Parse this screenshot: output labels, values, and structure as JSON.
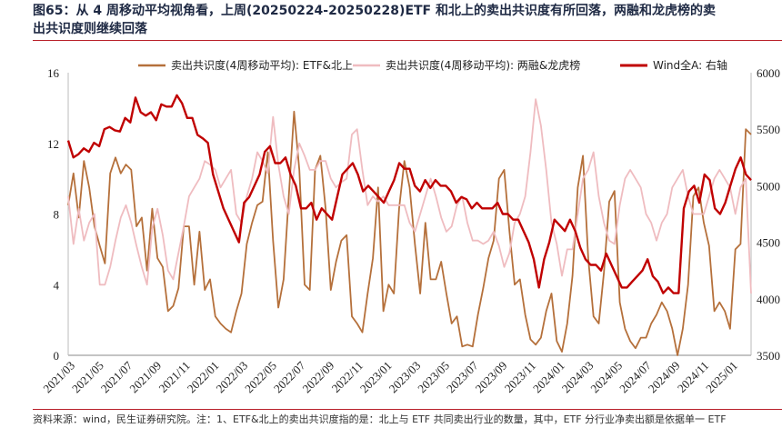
{
  "title": {
    "line1": "图65：从 4 周移动平均视角看，上周(20250224-20250228)ETF 和北上的卖出共识度有所回落，两融和龙虎榜的卖",
    "line2": "出共识度则继续回落"
  },
  "source": "资料来源：wind，民生证券研究院。注：1、ETF&北上的卖出共识度指的是：北上与 ETF 共同卖出行业的数量，其中，ETF 分行业净卖出额是依据单一 ETF",
  "colors": {
    "etf": "#b5703b",
    "margin": "#efbcc0",
    "wind": "#c00000",
    "accent": "#b9202a"
  },
  "chart_data": {
    "type": "line",
    "legend_position": "top",
    "x_tick_labels": [
      "2021/03",
      "2021/05",
      "2021/07",
      "2021/09",
      "2021/11",
      "2022/01",
      "2022/03",
      "2022/05",
      "2022/07",
      "2022/09",
      "2022/11",
      "2023/01",
      "2023/03",
      "2023/05",
      "2023/07",
      "2023/09",
      "2023/11",
      "2024/01",
      "2024/03",
      "2024/05",
      "2024/07",
      "2024/09",
      "2024/11",
      "2025/01"
    ],
    "x_start": "2021-03",
    "y_left": {
      "min": 0,
      "max": 16,
      "ticks": [
        0,
        4,
        8,
        12,
        16
      ]
    },
    "y_right": {
      "min": 3500,
      "max": 6000,
      "ticks": [
        3500,
        4000,
        4500,
        5000,
        5500,
        6000
      ]
    },
    "series": [
      {
        "name": "卖出共识度(4周移动平均): ETF&北上",
        "axis": "left",
        "values": [
          8.5,
          10.3,
          7.8,
          11.0,
          9.5,
          7.3,
          6.2,
          5.2,
          10.3,
          11.2,
          10.3,
          10.8,
          10.5,
          7.3,
          7.8,
          4.8,
          8.3,
          5.5,
          5.0,
          2.5,
          2.8,
          3.8,
          7.3,
          7.3,
          4.0,
          7.0,
          3.7,
          4.3,
          2.2,
          1.8,
          1.5,
          1.3,
          2.5,
          3.5,
          6.3,
          7.5,
          8.5,
          8.7,
          11.5,
          6.5,
          2.7,
          4.3,
          9.0,
          13.8,
          10.5,
          4.0,
          3.7,
          10.5,
          11.3,
          8.3,
          3.7,
          5.3,
          6.5,
          6.8,
          2.2,
          1.8,
          1.3,
          3.5,
          5.5,
          9.5,
          2.5,
          4.0,
          3.5,
          8.3,
          11.0,
          9.5,
          6.3,
          3.5,
          7.5,
          4.3,
          4.3,
          5.3,
          3.5,
          1.8,
          2.2,
          0.5,
          0.6,
          0.5,
          2.3,
          3.8,
          5.5,
          6.5,
          10.0,
          10.5,
          7.0,
          4.0,
          4.3,
          2.3,
          0.9,
          0.6,
          1.0,
          2.5,
          3.5,
          0.8,
          0.2,
          1.8,
          4.5,
          9.5,
          11.3,
          5.5,
          2.2,
          1.8,
          4.7,
          8.7,
          9.3,
          3.0,
          1.5,
          0.8,
          0.4,
          1.0,
          1.0,
          1.8,
          2.3,
          3.0,
          2.5,
          1.5,
          0.0,
          1.5,
          4.0,
          9.0,
          9.5,
          7.5,
          6.2,
          2.5,
          3.0,
          2.5,
          1.5,
          6.0,
          6.3,
          12.8,
          12.5
        ]
      },
      {
        "name": "卖出共识度(4周移动平均): 两融&龙虎榜",
        "axis": "left",
        "values": [
          9.0,
          6.3,
          8.3,
          6.5,
          7.5,
          8.0,
          4.0,
          4.0,
          5.0,
          6.5,
          7.8,
          8.5,
          7.5,
          6.2,
          5.0,
          4.0,
          7.2,
          8.3,
          6.8,
          4.8,
          4.3,
          5.8,
          7.3,
          9.0,
          9.5,
          10.0,
          11.0,
          10.8,
          10.5,
          9.5,
          10.0,
          10.5,
          8.0,
          7.5,
          9.0,
          10.0,
          11.5,
          11.0,
          10.3,
          13.5,
          10.8,
          9.0,
          8.0,
          10.5,
          12.0,
          11.3,
          10.5,
          10.5,
          11.0,
          11.0,
          10.0,
          9.5,
          9.8,
          10.0,
          12.5,
          12.8,
          10.5,
          8.5,
          9.0,
          8.7,
          9.0,
          8.5,
          8.5,
          8.5,
          8.5,
          7.5,
          7.0,
          8.0,
          9.0,
          10.0,
          9.0,
          7.8,
          7.0,
          7.3,
          8.5,
          9.0,
          7.5,
          6.5,
          6.5,
          6.3,
          6.5,
          7.0,
          6.2,
          5.0,
          5.8,
          7.5,
          8.0,
          9.0,
          11.5,
          14.5,
          13.0,
          10.5,
          7.5,
          6.3,
          4.5,
          6.0,
          6.0,
          8.0,
          10.0,
          10.5,
          11.5,
          9.0,
          7.5,
          6.5,
          6.3,
          8.5,
          10.0,
          10.5,
          10.0,
          9.5,
          8.0,
          7.5,
          6.5,
          7.5,
          8.0,
          9.5,
          10.0,
          10.5,
          9.0,
          8.0,
          8.0,
          8.0,
          9.0,
          10.0,
          10.5,
          10.0,
          9.5,
          8.0,
          9.5,
          10.0,
          3.5
        ]
      },
      {
        "name": "Wind全A: 右轴",
        "axis": "right",
        "values": [
          5400,
          5250,
          5280,
          5330,
          5300,
          5380,
          5350,
          5500,
          5520,
          5490,
          5480,
          5600,
          5560,
          5780,
          5650,
          5620,
          5650,
          5580,
          5720,
          5700,
          5700,
          5800,
          5730,
          5600,
          5600,
          5450,
          5420,
          5380,
          5100,
          4950,
          4800,
          4700,
          4600,
          4500,
          4850,
          4900,
          5000,
          5100,
          5300,
          5350,
          5200,
          5200,
          5250,
          5100,
          5000,
          4800,
          4800,
          4850,
          4700,
          4800,
          4750,
          4700,
          4900,
          5100,
          5150,
          5200,
          5100,
          4950,
          5000,
          4950,
          4900,
          4850,
          4950,
          5050,
          5200,
          5150,
          5150,
          5000,
          4950,
          5050,
          4980,
          5050,
          5000,
          5000,
          4950,
          4850,
          4900,
          4880,
          4800,
          4850,
          4800,
          4800,
          4800,
          4850,
          4750,
          4750,
          4700,
          4700,
          4600,
          4500,
          4350,
          4100,
          4350,
          4500,
          4700,
          4650,
          4600,
          4700,
          4600,
          4450,
          4350,
          4300,
          4300,
          4250,
          4400,
          4300,
          4200,
          4100,
          4100,
          4150,
          4200,
          4250,
          4350,
          4200,
          4150,
          4050,
          4100,
          4050,
          4050,
          4800,
          4950,
          5000,
          4850,
          5100,
          5050,
          4800,
          4750,
          4850,
          5000,
          5150,
          5250,
          5100,
          5050
        ]
      }
    ]
  }
}
